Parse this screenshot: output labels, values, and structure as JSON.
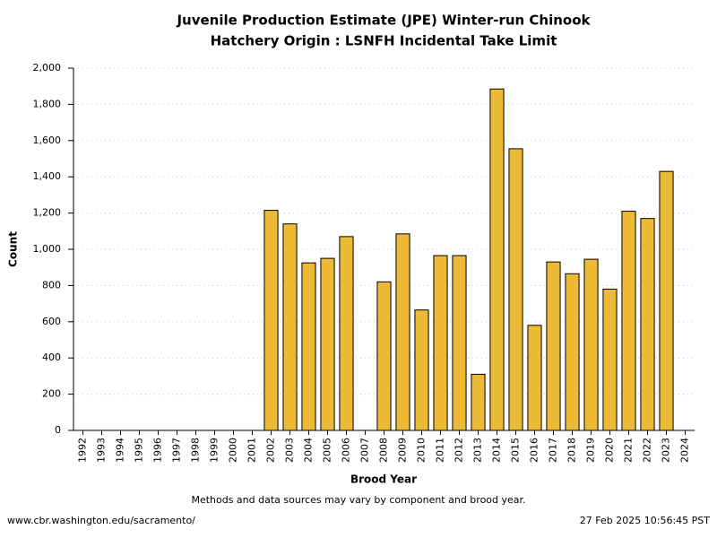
{
  "chart_data": {
    "type": "bar",
    "title": "Juvenile Production Estimate (JPE) Winter-run Chinook",
    "subtitle": "Hatchery Origin : LSNFH Incidental Take Limit",
    "x_label": "Brood Year",
    "y_label": "Count",
    "note": "Methods and data sources may vary by component and brood year.",
    "source": "www.cbr.washington.edu/sacramento/",
    "timestamp": "27 Feb 2025 10:56:45 PST",
    "categories": [
      "1992",
      "1993",
      "1994",
      "1995",
      "1996",
      "1997",
      "1998",
      "1999",
      "2000",
      "2001",
      "2002",
      "2003",
      "2004",
      "2005",
      "2006",
      "2007",
      "2008",
      "2009",
      "2010",
      "2011",
      "2012",
      "2013",
      "2014",
      "2015",
      "2016",
      "2017",
      "2018",
      "2019",
      "2020",
      "2021",
      "2022",
      "2023",
      "2024"
    ],
    "values": [
      null,
      null,
      null,
      null,
      null,
      null,
      null,
      null,
      null,
      null,
      1215,
      1140,
      925,
      950,
      1070,
      null,
      820,
      1085,
      665,
      965,
      965,
      310,
      1885,
      1555,
      580,
      930,
      865,
      945,
      780,
      1210,
      1170,
      1430,
      null
    ],
    "color": "#ecba35",
    "ylim": [
      0,
      2000
    ],
    "yticks": [
      0,
      200,
      400,
      600,
      800,
      {
        "value": 1000,
        "label": "1,000"
      },
      {
        "value": 1200,
        "label": "1,200"
      },
      {
        "value": 1400,
        "label": "1,400"
      },
      {
        "value": 1600,
        "label": "1,600"
      },
      {
        "value": 1800,
        "label": "1,800"
      },
      {
        "value": 2000,
        "label": "2,000"
      }
    ],
    "grid": true
  }
}
